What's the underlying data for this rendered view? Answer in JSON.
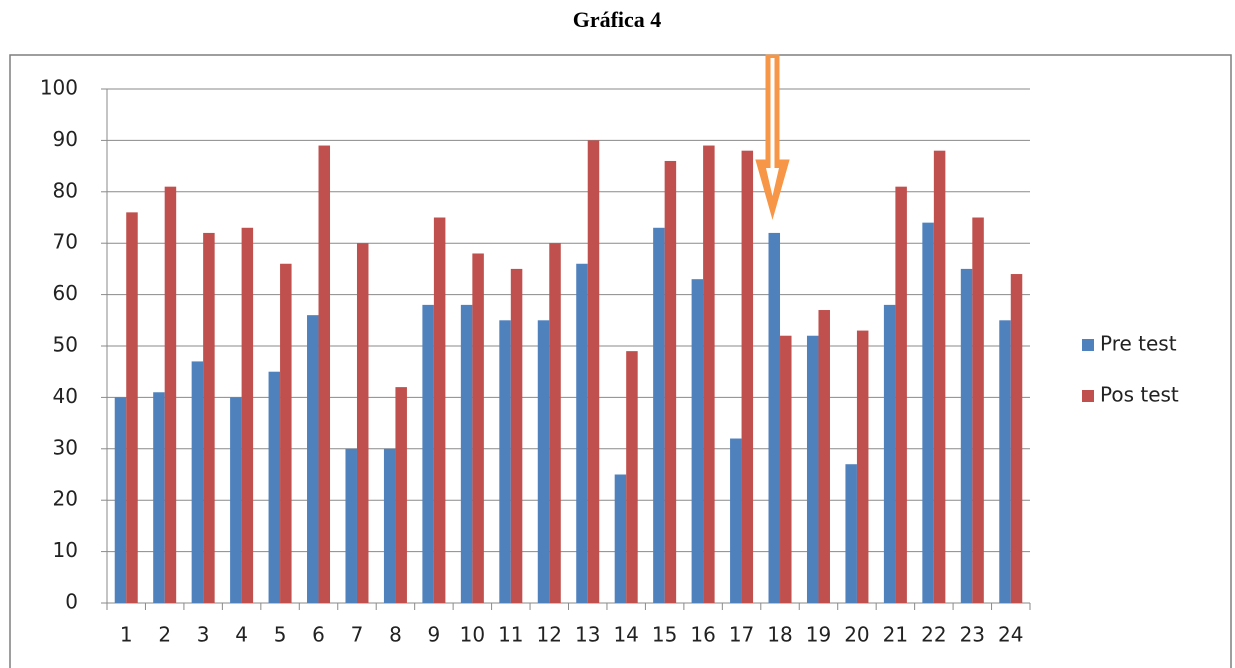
{
  "chart_data": {
    "type": "bar",
    "title": "Gráfica 4",
    "categories": [
      "1",
      "2",
      "3",
      "4",
      "5",
      "6",
      "7",
      "8",
      "9",
      "10",
      "11",
      "12",
      "13",
      "14",
      "15",
      "16",
      "17",
      "18",
      "19",
      "20",
      "21",
      "22",
      "23",
      "24"
    ],
    "series": [
      {
        "name": "Pre test",
        "color": "#4f81bd",
        "values": [
          40,
          41,
          47,
          40,
          45,
          56,
          30,
          30,
          58,
          58,
          55,
          55,
          66,
          25,
          73,
          63,
          32,
          72,
          52,
          27,
          58,
          74,
          65,
          55
        ]
      },
      {
        "name": "Pos test",
        "color": "#c0504d",
        "values": [
          76,
          81,
          72,
          73,
          66,
          89,
          70,
          42,
          75,
          68,
          65,
          70,
          90,
          49,
          86,
          89,
          88,
          52,
          57,
          53,
          81,
          88,
          75,
          64
        ]
      }
    ],
    "ylim": [
      0,
      100
    ],
    "yticks": [
      0,
      10,
      20,
      30,
      40,
      50,
      60,
      70,
      80,
      90,
      100
    ],
    "grid": true,
    "legend": "right"
  }
}
